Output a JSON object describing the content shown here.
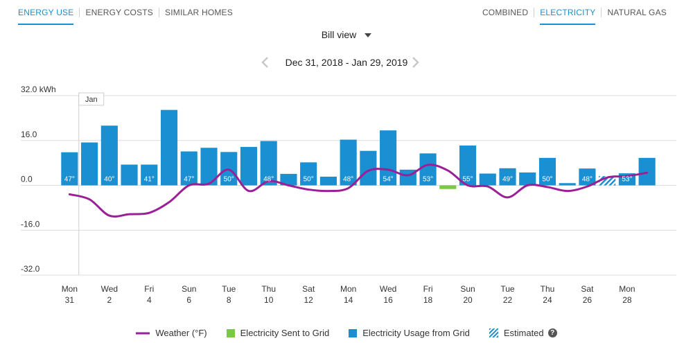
{
  "tabs_left": [
    "ENERGY USE",
    "ENERGY COSTS",
    "SIMILAR HOMES"
  ],
  "tabs_right": [
    "COMBINED",
    "ELECTRICITY",
    "NATURAL GAS"
  ],
  "view_select": "Bill view",
  "date_range": "Dec 31, 2018 - Jan 29, 2019",
  "colors": {
    "usage": "#1a8fd1",
    "sent": "#7ac943",
    "weather": "#9b1f96",
    "accent": "#1a8fd1"
  },
  "chart_data": {
    "type": "bar",
    "y_unit": "kWh",
    "ylim": [
      -32,
      32
    ],
    "y_ticks": [
      "32.0 kWh",
      "16.0",
      "0.0",
      "-16.0",
      "-32.0"
    ],
    "month_marker": "Jan",
    "x_labels": [
      {
        "day": "Mon",
        "date": "31"
      },
      {
        "day": "Wed",
        "date": "2"
      },
      {
        "day": "Fri",
        "date": "4"
      },
      {
        "day": "Sun",
        "date": "6"
      },
      {
        "day": "Tue",
        "date": "8"
      },
      {
        "day": "Thu",
        "date": "10"
      },
      {
        "day": "Sat",
        "date": "12"
      },
      {
        "day": "Mon",
        "date": "14"
      },
      {
        "day": "Wed",
        "date": "16"
      },
      {
        "day": "Fri",
        "date": "18"
      },
      {
        "day": "Sun",
        "date": "20"
      },
      {
        "day": "Tue",
        "date": "22"
      },
      {
        "day": "Thu",
        "date": "24"
      },
      {
        "day": "Sat",
        "date": "26"
      },
      {
        "day": "Mon",
        "date": "28"
      }
    ],
    "usage": [
      11.8,
      15.3,
      21.3,
      7.4,
      7.4,
      26.9,
      12.1,
      13.4,
      11.9,
      13.7,
      15.8,
      4.1,
      8.2,
      3.1,
      16.3,
      12.3,
      19.6,
      5.6,
      11.4,
      0,
      14.2,
      4.2,
      6.1,
      4.6,
      9.8,
      0.8,
      6.0,
      0,
      4.3,
      9.8
    ],
    "sent": [
      0,
      0,
      0,
      0,
      0,
      0,
      0,
      0,
      0,
      0,
      0,
      0,
      0,
      0,
      0,
      0,
      0,
      0,
      0,
      -1.3,
      0,
      0,
      0,
      0,
      0,
      0,
      0,
      0,
      0,
      0
    ],
    "estimated": [
      0,
      0,
      0,
      0,
      0,
      0,
      0,
      0,
      0,
      0,
      0,
      0,
      0,
      0,
      0,
      0,
      0,
      0,
      0,
      0,
      0,
      0,
      0,
      0,
      0,
      0,
      0,
      3.3,
      0,
      0
    ],
    "weather_labels": [
      {
        "day": 0,
        "text": "47°"
      },
      {
        "day": 2,
        "text": "40°"
      },
      {
        "day": 4,
        "text": "41°"
      },
      {
        "day": 6,
        "text": "47°"
      },
      {
        "day": 8,
        "text": "50°"
      },
      {
        "day": 10,
        "text": "48°"
      },
      {
        "day": 12,
        "text": "50°"
      },
      {
        "day": 14,
        "text": "48°"
      },
      {
        "day": 16,
        "text": "54°"
      },
      {
        "day": 18,
        "text": "53°"
      },
      {
        "day": 20,
        "text": "55°"
      },
      {
        "day": 22,
        "text": "49°"
      },
      {
        "day": 24,
        "text": "50°"
      },
      {
        "day": 26,
        "text": "48°"
      },
      {
        "day": 28,
        "text": "53°"
      }
    ],
    "weather": [
      -3.2,
      -5,
      -10.8,
      -10.3,
      -9.8,
      -6,
      0,
      0.6,
      5.6,
      -2,
      1.5,
      0,
      -1.5,
      -2,
      -1,
      5.2,
      5.6,
      3.6,
      7.3,
      5.3,
      0,
      -0.4,
      -4.3,
      0,
      -0.6,
      -2,
      -0.4,
      2.8,
      3.3,
      4.5
    ]
  },
  "legend": [
    {
      "key": "weather",
      "label": "Weather (°F)"
    },
    {
      "key": "sent",
      "label": "Electricity Sent to Grid"
    },
    {
      "key": "usage",
      "label": "Electricity Usage from Grid"
    },
    {
      "key": "estimated",
      "label": "Estimated"
    }
  ]
}
